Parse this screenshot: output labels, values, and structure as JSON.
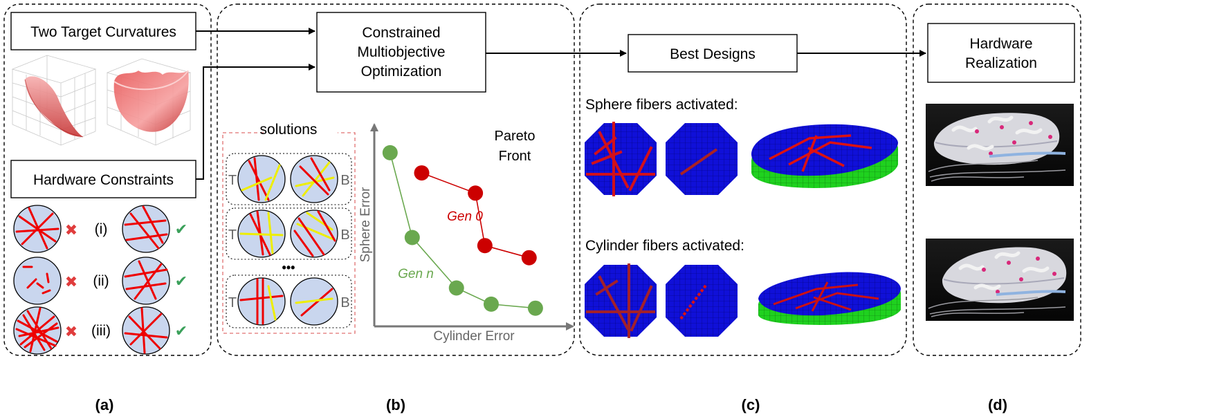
{
  "panels": {
    "a": {
      "label": "(a)",
      "target_box": "Two Target Curvatures",
      "constraints_box": "Hardware Constraints",
      "rows": [
        {
          "roman": "(i)"
        },
        {
          "roman": "(ii)"
        },
        {
          "roman": "(iii)"
        }
      ],
      "bad_mark": "✖",
      "good_mark": "✔"
    },
    "b": {
      "label": "(b)",
      "optimizer_lines": [
        "Constrained",
        "Multiobjective",
        "Optimization"
      ],
      "solutions_title": "solutions",
      "left_letter": "T",
      "right_letter": "B",
      "ellipsis": "•••",
      "plot": {
        "title_lines": [
          "Pareto",
          "Front"
        ],
        "xlabel": "Cylinder Error",
        "ylabel": "Sphere Error",
        "gen0_label": "Gen 0",
        "genn_label": "Gen n",
        "gen0_color": "#cc0000",
        "genn_color": "#6aa84f"
      }
    },
    "c": {
      "label": "(c)",
      "best_box": "Best Designs",
      "sphere_caption": "Sphere fibers activated:",
      "cylinder_caption": "Cylinder fibers activated:"
    },
    "d": {
      "label": "(d)",
      "hardware_lines": [
        "Hardware",
        "Realization"
      ]
    }
  },
  "chart_data": {
    "type": "scatter",
    "title": "Pareto Front",
    "xlabel": "Cylinder Error",
    "ylabel": "Sphere Error",
    "series": [
      {
        "name": "Gen 0",
        "color": "#cc0000",
        "x": [
          1.5,
          3.2,
          3.5,
          4.9
        ],
        "y": [
          7.6,
          6.6,
          4.0,
          3.4
        ]
      },
      {
        "name": "Gen n",
        "color": "#6aa84f",
        "x": [
          0.5,
          1.2,
          2.6,
          3.7,
          5.1
        ],
        "y": [
          8.6,
          4.4,
          1.9,
          1.1,
          0.9
        ]
      }
    ],
    "xlim": [
      0,
      6
    ],
    "ylim": [
      0,
      10
    ],
    "grid": false
  }
}
